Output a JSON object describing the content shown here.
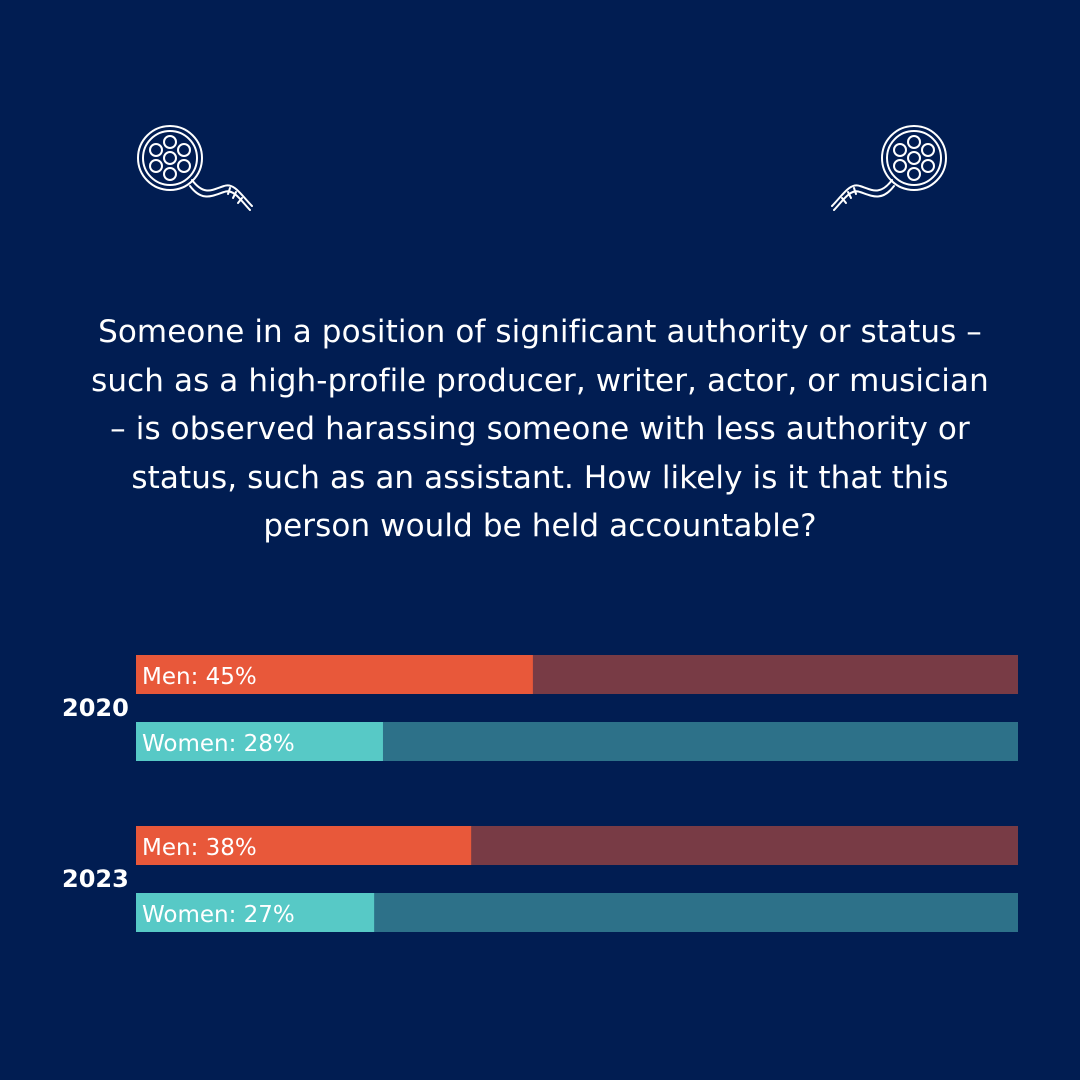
{
  "question": "Someone in a position of significant authority or status – such as a high-profile producer, writer, actor, or musician – is observed harassing someone with less authority or status, such as an assistant. How likely is it that this person would be held accountable?",
  "colors": {
    "background": "#011d52",
    "men": "#e8583a",
    "men_track": "#783b45",
    "women": "#57c9c6",
    "women_track": "#2d7189"
  },
  "icons": [
    "film-reel-icon",
    "film-reel-icon"
  ],
  "chart_data": {
    "type": "bar",
    "orientation": "horizontal",
    "groups": [
      "2020",
      "2023"
    ],
    "xlim": [
      0,
      100
    ],
    "series": [
      {
        "name": "Men",
        "values": [
          45,
          38
        ],
        "labels": [
          "Men: 45%",
          "Men: 38%"
        ]
      },
      {
        "name": "Women",
        "values": [
          28,
          27
        ],
        "labels": [
          "Women: 28%",
          "Women: 27%"
        ]
      }
    ]
  }
}
